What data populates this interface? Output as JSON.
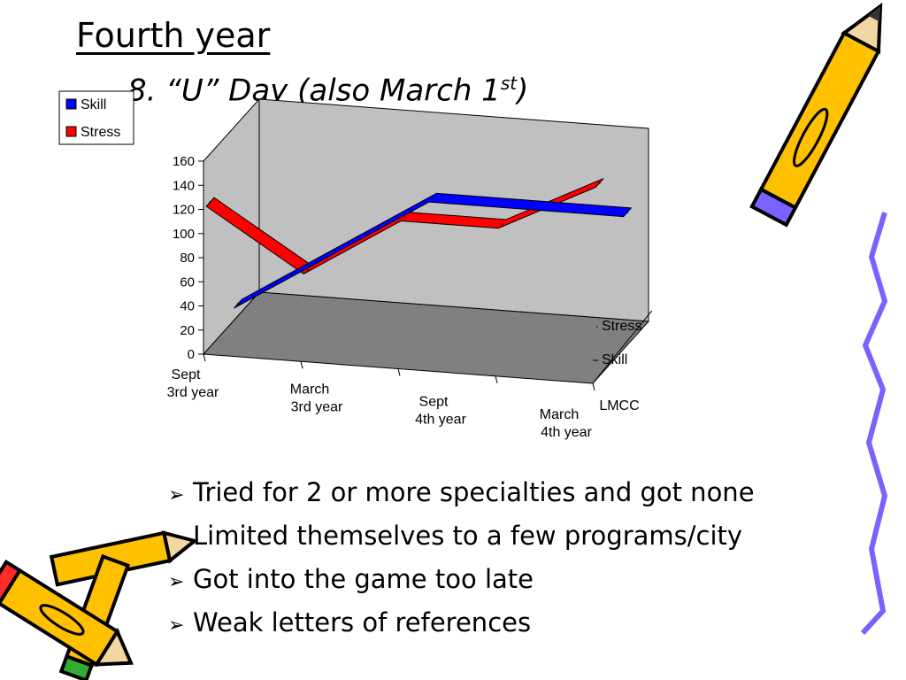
{
  "slide": {
    "title": "Fourth year",
    "subtitle_main": "8. “U” Day (also March 1",
    "subtitle_sup": "st",
    "subtitle_end": ")",
    "bullet_marker": "➢",
    "bullets": [
      "Tried for 2 or more specialties and got none",
      "Limited themselves to a few programs/city",
      "Got into the game too late",
      "Weak letters of references"
    ]
  },
  "chart_data": {
    "type": "line",
    "style": "3d",
    "categories": [
      "Sept\n3rd year",
      "March\n3rd year",
      "Sept\n4th year",
      "March\n4th year",
      "LMCC"
    ],
    "series": [
      {
        "name": "Skill",
        "values": [
          10,
          60,
          110,
          110,
          110
        ],
        "color": "#0000ff"
      },
      {
        "name": "Stress",
        "values": [
          120,
          70,
          120,
          120,
          160
        ],
        "color": "#ff0000"
      }
    ],
    "depth_labels": [
      "Stress",
      "Skill"
    ],
    "yticks": [
      "0",
      "20",
      "40",
      "60",
      "80",
      "100",
      "120",
      "140",
      "160"
    ],
    "ylim": [
      0,
      160
    ],
    "legend_position": "top-left",
    "wall_color": "#c0c0c0",
    "floor_color": "#808080"
  }
}
